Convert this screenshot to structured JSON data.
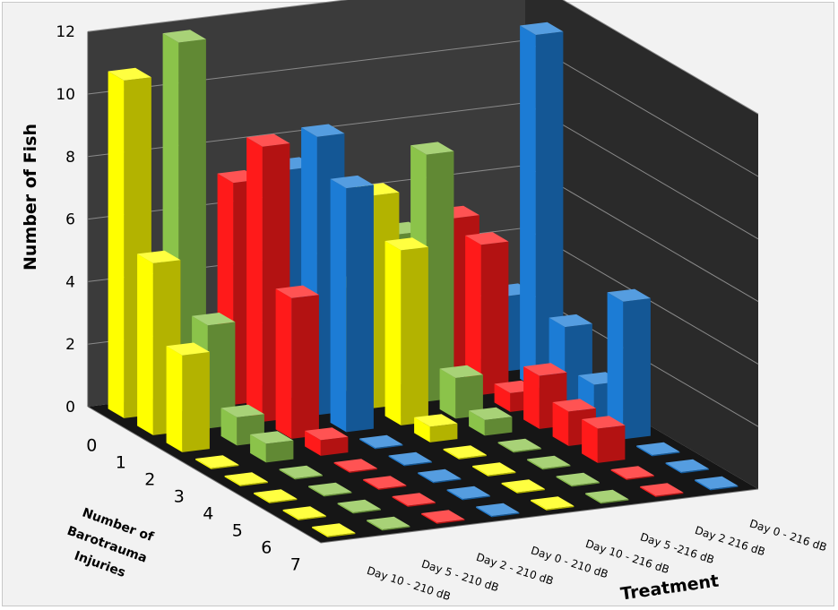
{
  "chart_data": {
    "type": "bar3d",
    "title": "",
    "ylabel": "Number of Fish",
    "xlabel": "Treatment",
    "zlabel": [
      "Number of",
      "Barotrauma",
      "Injuries"
    ],
    "ylim": [
      0,
      12
    ],
    "yticks": [
      "0",
      "2",
      "4",
      "6",
      "8",
      "10",
      "12"
    ],
    "injury_levels": [
      "0",
      "1",
      "2",
      "3",
      "4",
      "5",
      "6",
      "7"
    ],
    "series": [
      {
        "name": "Day 10 - 210 dB",
        "color": "#ffff00",
        "values": [
          10.8,
          5.5,
          3.1,
          0,
          0,
          0,
          0,
          0
        ]
      },
      {
        "name": "Day 5 - 210 dB",
        "color": "#8bc34a",
        "values": [
          11.8,
          3.3,
          0.9,
          0.6,
          0,
          0,
          0,
          0
        ]
      },
      {
        "name": "Day 2 - 210 dB",
        "color": "#ff1a1a",
        "values": [
          7.1,
          8.8,
          4.5,
          0.5,
          0,
          0,
          0,
          0
        ]
      },
      {
        "name": "Day 0 - 210 dB",
        "color": "#1c7cd5",
        "values": [
          7.3,
          8.9,
          7.8,
          0,
          0,
          0,
          0,
          0
        ]
      },
      {
        "name": "Day 10 - 216 dB",
        "color": "#ffff00",
        "values": [
          3.3,
          6.8,
          5.6,
          0.5,
          0,
          0,
          0,
          0
        ]
      },
      {
        "name": "Day 5 -216 dB",
        "color": "#8bc34a",
        "values": [
          4.8,
          7.9,
          1.3,
          0.5,
          0,
          0,
          0,
          0
        ]
      },
      {
        "name": "Day 2 216 dB",
        "color": "#ff1a1a",
        "values": [
          5.1,
          4.8,
          0.6,
          1.7,
          1.1,
          1.1,
          0,
          0
        ]
      },
      {
        "name": "Day 0 - 216 dB",
        "color": "#1c7cd5",
        "values": [
          2.4,
          11.3,
          2.5,
          1.2,
          4.4,
          0,
          0,
          0
        ]
      }
    ]
  }
}
